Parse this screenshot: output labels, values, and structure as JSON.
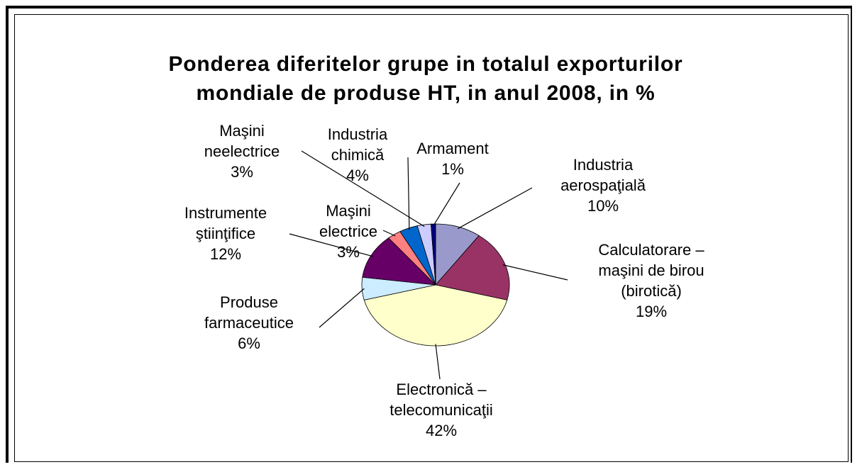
{
  "chart_data": {
    "type": "pie",
    "title": "Ponderea diferitelor grupe in totalul exporturilor mondiale de produse HT, in anul 2008, in %",
    "categories": [
      "Industria aerospaţială",
      "Calculatorare – maşini de birou (birotică)",
      "Electronică – telecomunicaţii",
      "Produse farmaceutice",
      "Instrumente ştiinţifice",
      "Maşini electrice",
      "Industria chimică",
      "Maşini neelectrice",
      "Armament"
    ],
    "values": [
      10,
      19,
      42,
      6,
      12,
      3,
      4,
      3,
      1
    ],
    "value_labels": [
      "10%",
      "19%",
      "42%",
      "6%",
      "12%",
      "3%",
      "4%",
      "3%",
      "1%"
    ],
    "colors": [
      "#9999cc",
      "#993366",
      "#ffffcc",
      "#ccecff",
      "#660066",
      "#ff8080",
      "#0066cc",
      "#ccccff",
      "#000080"
    ]
  }
}
